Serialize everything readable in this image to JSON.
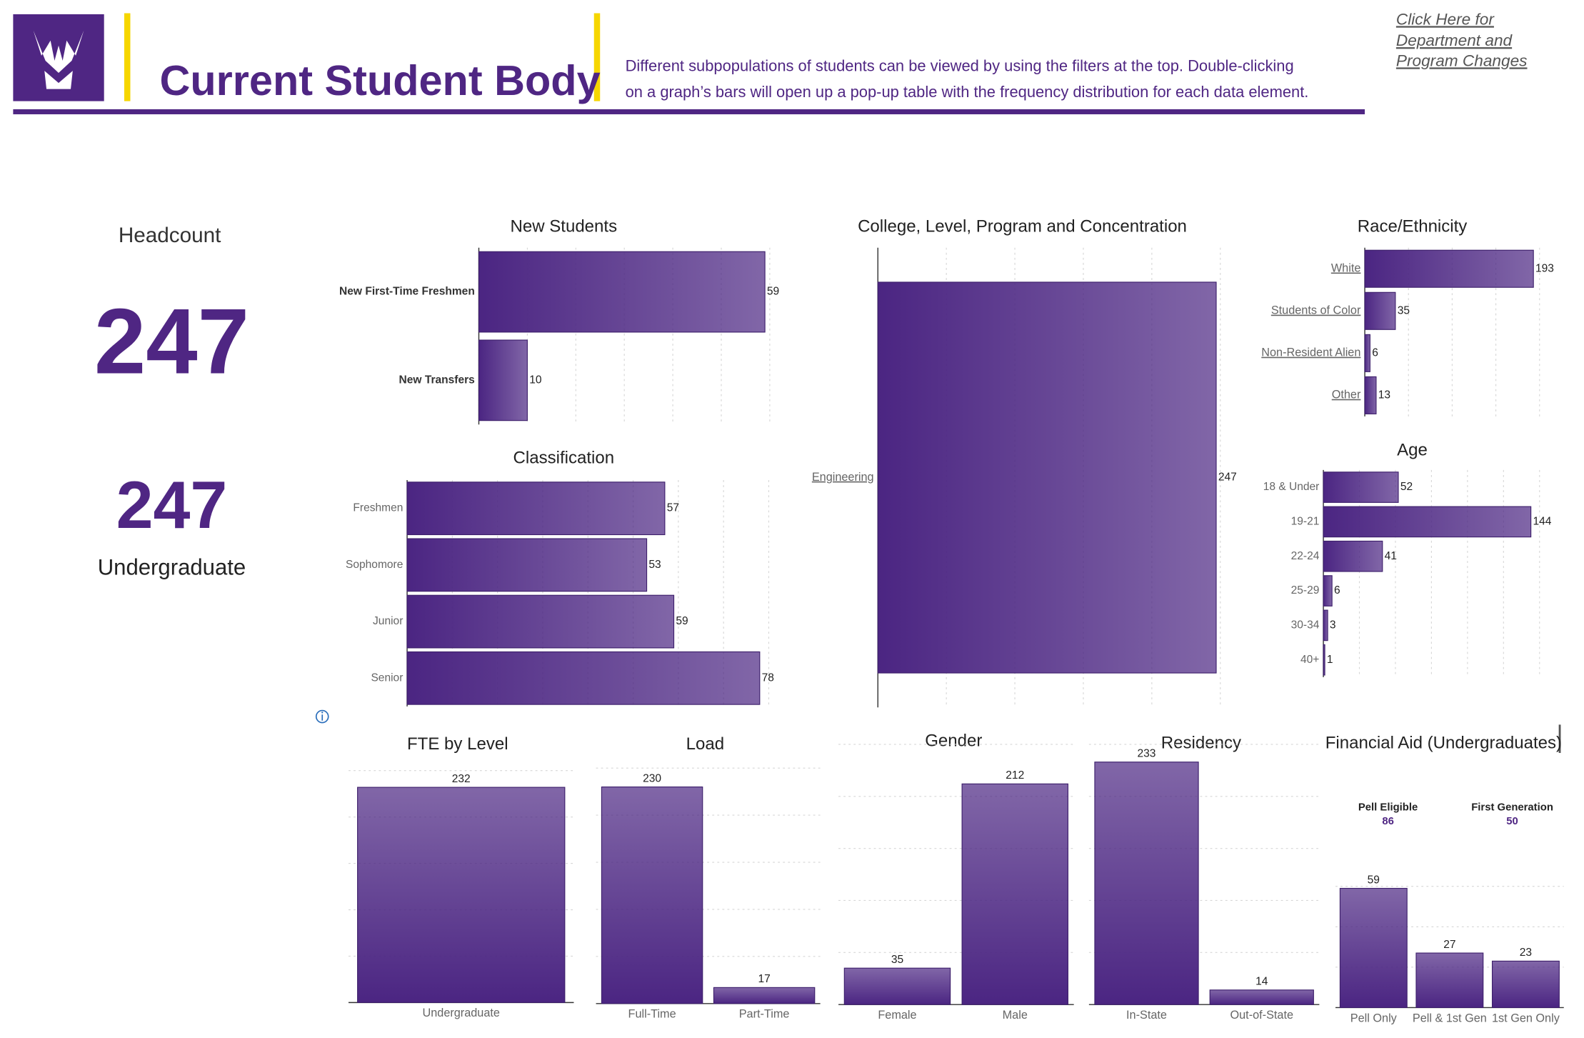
{
  "header": {
    "title": "Current Student Body",
    "description": [
      "Different subpopulations of students can be viewed by using the  filters at the top. Double-clicking",
      "on a graph’s bars will open up a pop-up table with the frequency distribution for each data element."
    ],
    "link": [
      "Click Here for",
      "Department and",
      "Program Changes"
    ]
  },
  "headcount": {
    "title": "Headcount",
    "total": 247,
    "undergraduate_count": 247,
    "undergraduate_label": "Undergraduate"
  },
  "chart_data": [
    {
      "type": "bar",
      "orientation": "horizontal",
      "title": "New Students",
      "categories": [
        "New First-Time Freshmen",
        "New Transfers"
      ],
      "values": [
        59,
        10
      ],
      "color": "#4b2582",
      "xlim": [
        0,
        60
      ],
      "xticks": [
        0,
        10,
        20,
        30,
        40,
        50,
        60
      ],
      "tick_labels": false,
      "grid": true
    },
    {
      "type": "bar",
      "orientation": "horizontal",
      "title": "Classification",
      "categories": [
        "Freshmen",
        "Sophomore",
        "Junior",
        "Senior"
      ],
      "values": [
        57,
        53,
        59,
        78
      ],
      "color": "#4b2582",
      "xlim": [
        0,
        80
      ],
      "xticks": [
        0,
        10,
        20,
        30,
        40,
        50,
        60,
        70,
        80
      ],
      "tick_labels": false,
      "grid": true
    },
    {
      "type": "bar",
      "orientation": "horizontal",
      "title": "College, Level, Program and Concentration",
      "categories": [
        "Engineering"
      ],
      "values": [
        247
      ],
      "color": "#4b2582",
      "xlim": [
        0,
        250
      ],
      "xticks": [
        0,
        50,
        100,
        150,
        200,
        250
      ],
      "tick_labels": false,
      "grid": true
    },
    {
      "type": "bar",
      "orientation": "horizontal",
      "title": "Race/Ethnicity",
      "categories": [
        "White",
        "Students of Color",
        "Non-Resident Alien",
        "Other"
      ],
      "values": [
        193,
        35,
        6,
        13
      ],
      "color": "#4b2582",
      "xlim": [
        0,
        200
      ],
      "xticks": [
        0,
        50,
        100,
        150,
        200
      ],
      "tick_labels": false,
      "grid": true
    },
    {
      "type": "bar",
      "orientation": "horizontal",
      "title": "Age",
      "categories": [
        "18 & Under",
        "19-21",
        "22-24",
        "25-29",
        "30-34",
        "40+"
      ],
      "values": [
        52,
        144,
        41,
        6,
        3,
        1
      ],
      "color": "#4b2582",
      "xlim": [
        0,
        150
      ],
      "xticks": [
        0,
        25,
        50,
        75,
        100,
        125,
        150
      ],
      "tick_labels": false,
      "grid": true
    },
    {
      "type": "bar",
      "orientation": "vertical",
      "title": "FTE by Level",
      "categories": [
        "Undergraduate"
      ],
      "values": [
        232
      ],
      "color": "#4b2582",
      "ylim": [
        0,
        250
      ],
      "yticks": [
        0,
        50,
        100,
        150,
        200,
        250
      ],
      "tick_labels": false,
      "grid": true
    },
    {
      "type": "bar",
      "orientation": "vertical",
      "title": "Load",
      "categories": [
        "Full-Time",
        "Part-Time"
      ],
      "values": [
        230,
        17
      ],
      "color": "#4b2582",
      "ylim": [
        0,
        250
      ],
      "yticks": [
        0,
        50,
        100,
        150,
        200,
        250
      ],
      "tick_labels": false,
      "grid": true
    },
    {
      "type": "bar",
      "orientation": "vertical",
      "title": "Gender",
      "categories": [
        "Female",
        "Male"
      ],
      "values": [
        35,
        212
      ],
      "color": "#4b2582",
      "ylim": [
        0,
        250
      ],
      "yticks": [
        0,
        50,
        100,
        150,
        200,
        250
      ],
      "tick_labels": false,
      "grid": true
    },
    {
      "type": "bar",
      "orientation": "vertical",
      "title": "Residency",
      "categories": [
        "In-State",
        "Out-of-State"
      ],
      "values": [
        233,
        14
      ],
      "color": "#4b2582",
      "ylim": [
        0,
        250
      ],
      "yticks": [
        0,
        50,
        100,
        150,
        200,
        250
      ],
      "tick_labels": false,
      "grid": true
    },
    {
      "type": "bar",
      "orientation": "vertical",
      "title": "Financial Aid (Undergraduates)",
      "categories": [
        "Pell Only",
        "Pell & 1st Gen",
        "1st Gen Only"
      ],
      "values": [
        59,
        27,
        23
      ],
      "color": "#4b2582",
      "ylim": [
        0,
        60
      ],
      "yticks": [
        0,
        20,
        40,
        60
      ],
      "tick_labels": false,
      "grid": true,
      "metrics": [
        {
          "label": "Pell Eligible",
          "value": 86
        },
        {
          "label": "First Generation",
          "value": 50
        }
      ]
    }
  ]
}
